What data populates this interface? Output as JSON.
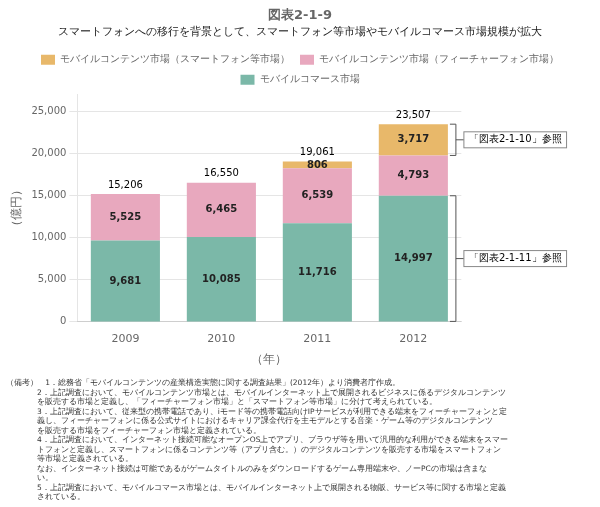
{
  "chart_data": {
    "type": "bar",
    "stacked": true,
    "title": "図表2-1-9",
    "subtitle": "スマートフォンへの移行を背景として、スマートフォン等市場やモバイルコマース市場規模が拡大",
    "xlabel": "（年）",
    "ylabel": "（億円）",
    "categories": [
      "2009",
      "2010",
      "2011",
      "2012"
    ],
    "series": [
      {
        "name": "モバイルコンテンツ市場（スマートフォン等市場）",
        "color": "#E8B86A",
        "values": [
          0,
          0,
          806,
          3717
        ],
        "value_labels": [
          null,
          null,
          "806",
          "3,717"
        ]
      },
      {
        "name": "モバイルコンテンツ市場（フィーチャーフォン市場）",
        "color": "#E8A8BE",
        "values": [
          5525,
          6465,
          6539,
          4793
        ],
        "value_labels": [
          "5,525",
          "6,465",
          "6,539",
          "4,793"
        ]
      },
      {
        "name": "モバイルコマース市場",
        "color": "#7BB8A8",
        "values": [
          9681,
          10085,
          11716,
          14997
        ],
        "value_labels": [
          "9,681",
          "10,085",
          "11,716",
          "14,997"
        ]
      }
    ],
    "totals": [
      15206,
      16550,
      19061,
      23507
    ],
    "total_labels": [
      "15,206",
      "16,550",
      "19,061",
      "23,507"
    ],
    "ylim": [
      0,
      27000
    ],
    "yticks": [
      0,
      {
        "value": 5000,
        "label": "5,000"
      },
      {
        "value": 10000,
        "label": "10,000"
      },
      {
        "value": 15000,
        "label": "15,000"
      },
      {
        "value": 20000,
        "label": "20,000"
      },
      {
        "value": 25000,
        "label": "25,000"
      }
    ],
    "grid": true,
    "legend": "top",
    "data_labels": true,
    "annotations": [
      {
        "text": "「図表2-1-10」参照",
        "category": "2012",
        "series": "モバイルコンテンツ市場（スマートフォン等市場）"
      },
      {
        "text": "「図表2-1-11」参照",
        "category": "2012",
        "series": "モバイルコマース市場"
      }
    ],
    "notes": [
      "（備考）   1．総務省「モバイルコンテンツの産業構造実態に関する調査結果」(2012年）より消費者庁作成。",
      "             2．上記調査において、モバイルコンテンツ市場とは、モバイルインターネット上で展開されるビジネスに係るデジタルコンテンツ",
      "             を販売する市場と定義し、「フィーチャーフォン市場」と「スマートフォン等市場」に分けて考えられている。",
      "             3．上記調査において、従来型の携帯電話であり、iモード等の携帯電話向けIPサービスが利用できる端末をフィーチャーフォンと定",
      "             義し、フィーチャーフォンに係る公式サイトにおけるキャリア課金代行を主モデルとする音楽・ゲーム等のデジタルコンテンツ",
      "             を販売する市場をフィーチャーフォン市場と定義されている。",
      "             4．上記調査において、インターネット接続可能なオープンOS上でアプリ、ブラウザ等を用いて汎用的な利用ができる端末をスマー",
      "             トフォンと定義し、スマートフォンに係るコンテンツ等（アプリ含む。）のデジタルコンテンツを販売する市場をスマートフォン",
      "             等市場と定義されている。",
      "             なお、インターネット接続は可能であるがゲームタイトルのみをダウンロードするゲーム専用端末や、ノーPCの市場は含まな",
      "             い。",
      "             5．上記調査において、モバイルコマース市場とは、モバイルインターネット上で展開される物販、サービス等に関する市場と定義",
      "             されている。"
    ]
  }
}
